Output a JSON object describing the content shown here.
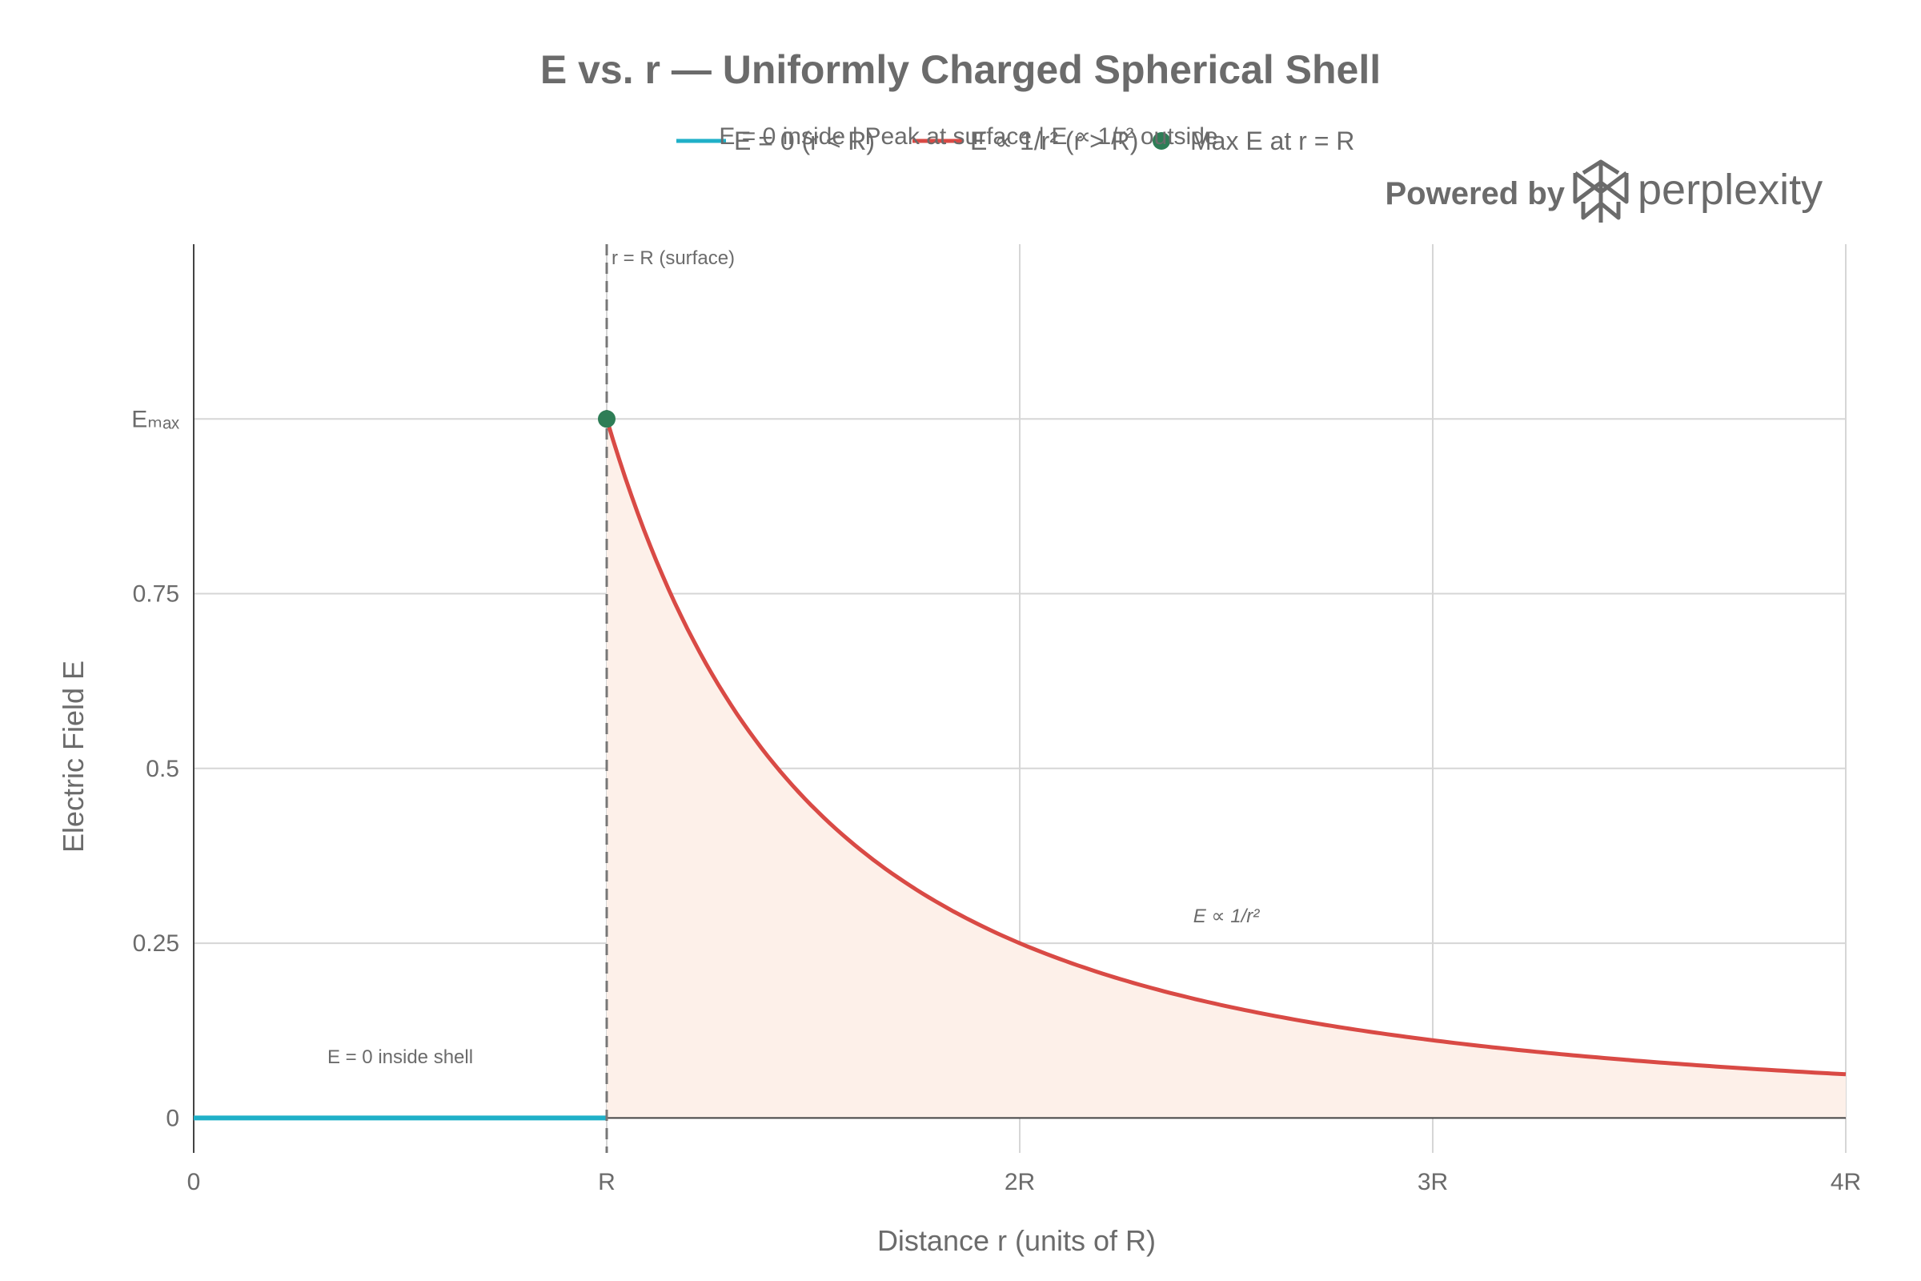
{
  "chart_data": {
    "type": "line",
    "title": "E vs. r — Uniformly Charged Spherical Shell",
    "subtitle": "E = 0 inside | Peak at surface | E ∝ 1/r² outside",
    "xlabel": "Distance r (units of R)",
    "ylabel": "Electric Field E",
    "xlim": [
      0,
      4
    ],
    "ylim": [
      -0.05,
      1.25
    ],
    "x_ticks": [
      {
        "value": 0,
        "label": "0"
      },
      {
        "value": 1,
        "label": "R"
      },
      {
        "value": 2,
        "label": "2R"
      },
      {
        "value": 3,
        "label": "3R"
      },
      {
        "value": 4,
        "label": "4R"
      }
    ],
    "y_ticks": [
      {
        "value": 0,
        "label": "0"
      },
      {
        "value": 0.25,
        "label": "0.25"
      },
      {
        "value": 0.5,
        "label": "0.5"
      },
      {
        "value": 0.75,
        "label": "0.75"
      },
      {
        "value": 1,
        "label": "Eₘₐₓ"
      }
    ],
    "grid": true,
    "legend_position": "top-center",
    "series": [
      {
        "name": "E = 0 (r < R)",
        "color": "#1fb0c8",
        "x": [
          0,
          1
        ],
        "y": [
          0,
          0
        ]
      },
      {
        "name": "E ∝ 1/r² (r > R)",
        "color": "#d94a45",
        "function": "1/x^2",
        "x_range": [
          1,
          4
        ],
        "fill_color": "#fdf0e9"
      },
      {
        "name": "Max E at r = R",
        "color": "#2e7d56",
        "type": "scatter",
        "x": [
          1
        ],
        "y": [
          1
        ]
      }
    ],
    "annotations": [
      {
        "text": "r = R (surface)",
        "x": 1,
        "y": 1.23
      },
      {
        "text": "E = 0 inside shell",
        "x": 0.5,
        "y": 0.08
      },
      {
        "text": "E ∝ 1/r²",
        "x": 2.5,
        "y": 0.28
      }
    ],
    "vline": {
      "x": 1,
      "style": "dashed",
      "color": "#777777"
    }
  },
  "brand": {
    "prefix": "Powered by",
    "name": "perplexity",
    "icon": "perplexity-logo-icon"
  }
}
